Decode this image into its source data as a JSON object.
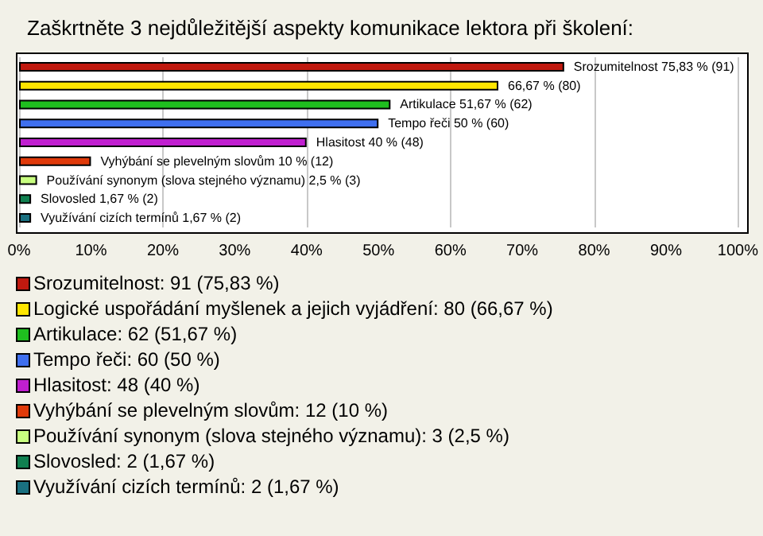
{
  "chart_data": {
    "type": "bar",
    "orientation": "horizontal",
    "title": "Zaškrtněte 3 nejdůležitější aspekty komunikace lektora při školení:",
    "categories": [
      null,
      null,
      null,
      null,
      null,
      null,
      null,
      null,
      null
    ],
    "values": [
      75.83,
      66.67,
      51.67,
      50,
      40,
      10,
      2.5,
      1.67,
      1.67
    ],
    "colors": [
      "#c0190f",
      "#ffe600",
      "#1fbf1f",
      "#3f6fef",
      "#c01fd0",
      "#e03a0a",
      "#c8ff80",
      "#108050",
      "#1a7080"
    ],
    "value_labels": [
      "Srozumitelnost 75,83 % (91)",
      "66,67 % (80)",
      "Artikulace 51,67 % (62)",
      "Tempo řeči 50 % (60)",
      "Hlasitost 40 % (48)",
      "Vyhýbání se plevelným slovům 10 % (12)",
      "Používání synonym (slova stejného významu) 2,5 % (3)",
      "Slovosled 1,67 % (2)",
      "Využívání cizích termínů 1,67 % (2)"
    ],
    "xlim": [
      0,
      100
    ],
    "xticks": [
      {
        "value": 0,
        "label": "0%"
      },
      {
        "value": 10,
        "label": "10%"
      },
      {
        "value": 20,
        "label": "20%"
      },
      {
        "value": 30,
        "label": "30%"
      },
      {
        "value": 40,
        "label": "40%"
      },
      {
        "value": 50,
        "label": "50%"
      },
      {
        "value": 60,
        "label": "60%"
      },
      {
        "value": 70,
        "label": "70%"
      },
      {
        "value": 80,
        "label": "80%"
      },
      {
        "value": 90,
        "label": "90%"
      },
      {
        "value": 100,
        "label": "100%"
      }
    ],
    "grid": "x",
    "tick_labels": "x",
    "annotations": [
      "Srozumitelnost: 91 (75,83 %)",
      "Logické uspořádání myšlenek a jejich vyjádření: 80 (66,67 %)",
      "Artikulace: 62 (51,67 %)",
      "Tempo řeči: 60 (50 %)",
      "Hlasitost: 48 (40 %)",
      "Vyhýbání se plevelným slovům: 12 (10 %)",
      "Používání synonym (slova stejného významu): 3 (2,5 %)",
      "Slovosled: 2 (1,67 %)",
      "Využívání cizích termínů: 2 (1,67 %)"
    ]
  }
}
